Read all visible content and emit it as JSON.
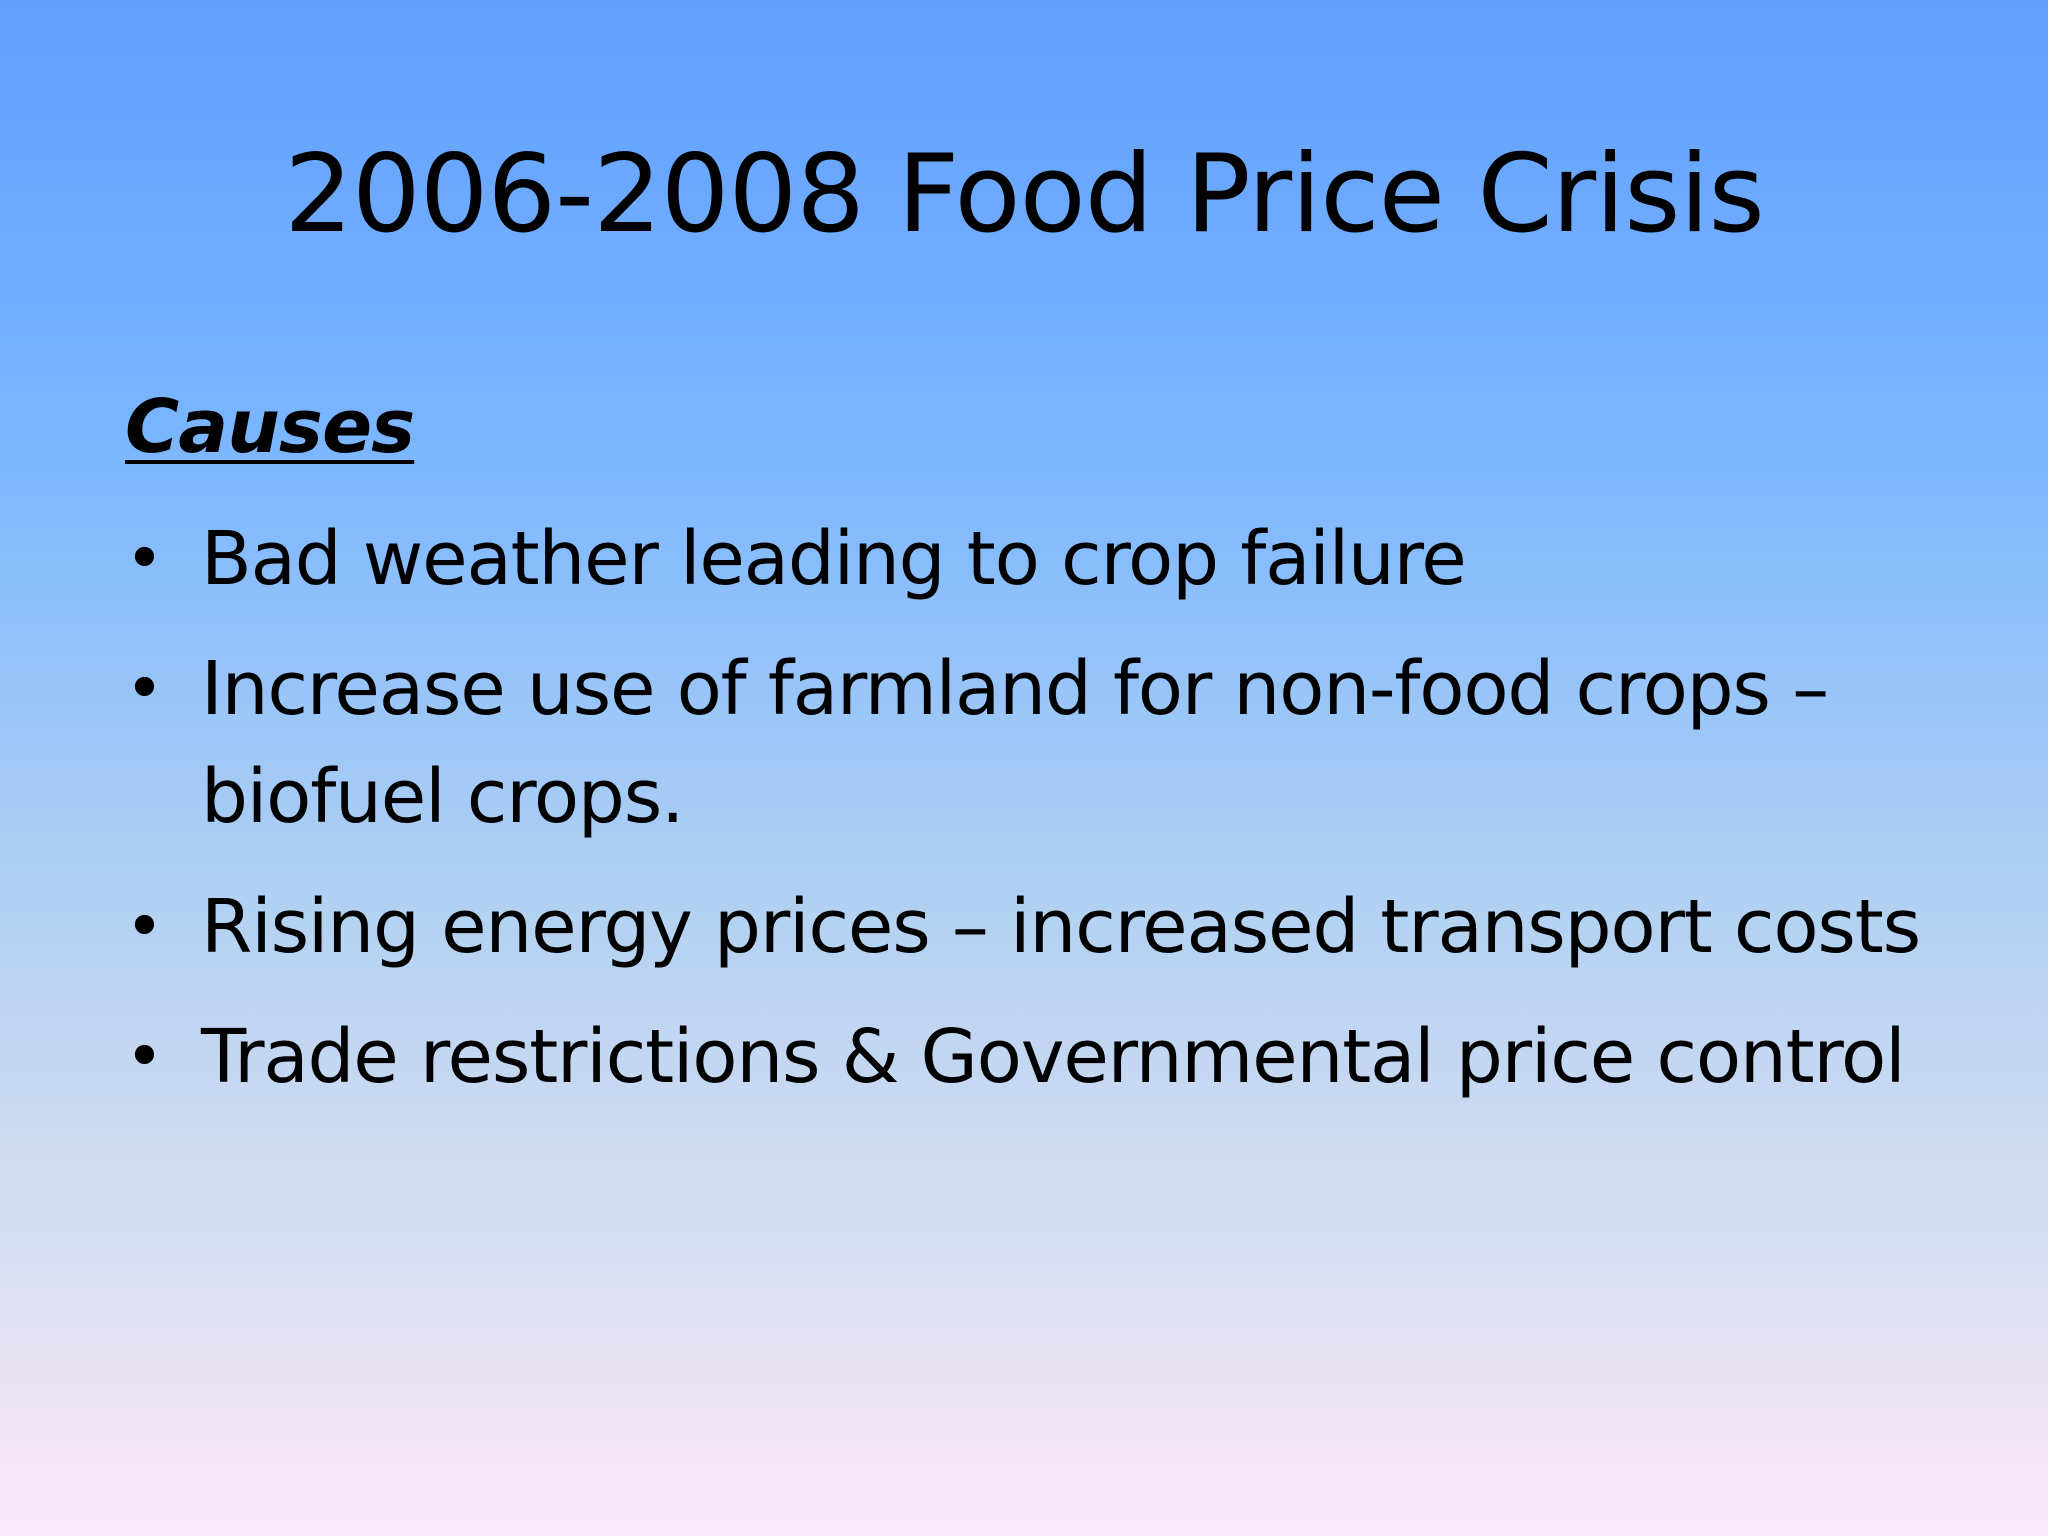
{
  "slide": {
    "title": "2006-2008 Food Price Crisis",
    "heading": "Causes",
    "bullet_glyph": "•",
    "items": [
      {
        "text": "Bad weather leading to crop failure"
      },
      {
        "text": "Increase use of farmland for non-food crops – biofuel crops."
      },
      {
        "text": "Rising energy prices – increased transport costs"
      },
      {
        "text": "Trade restrictions & Governmental price control"
      }
    ]
  },
  "colors": {
    "background_top": "#5f9fff",
    "background_bottom": "#fbe8f8",
    "text": "#000000"
  }
}
